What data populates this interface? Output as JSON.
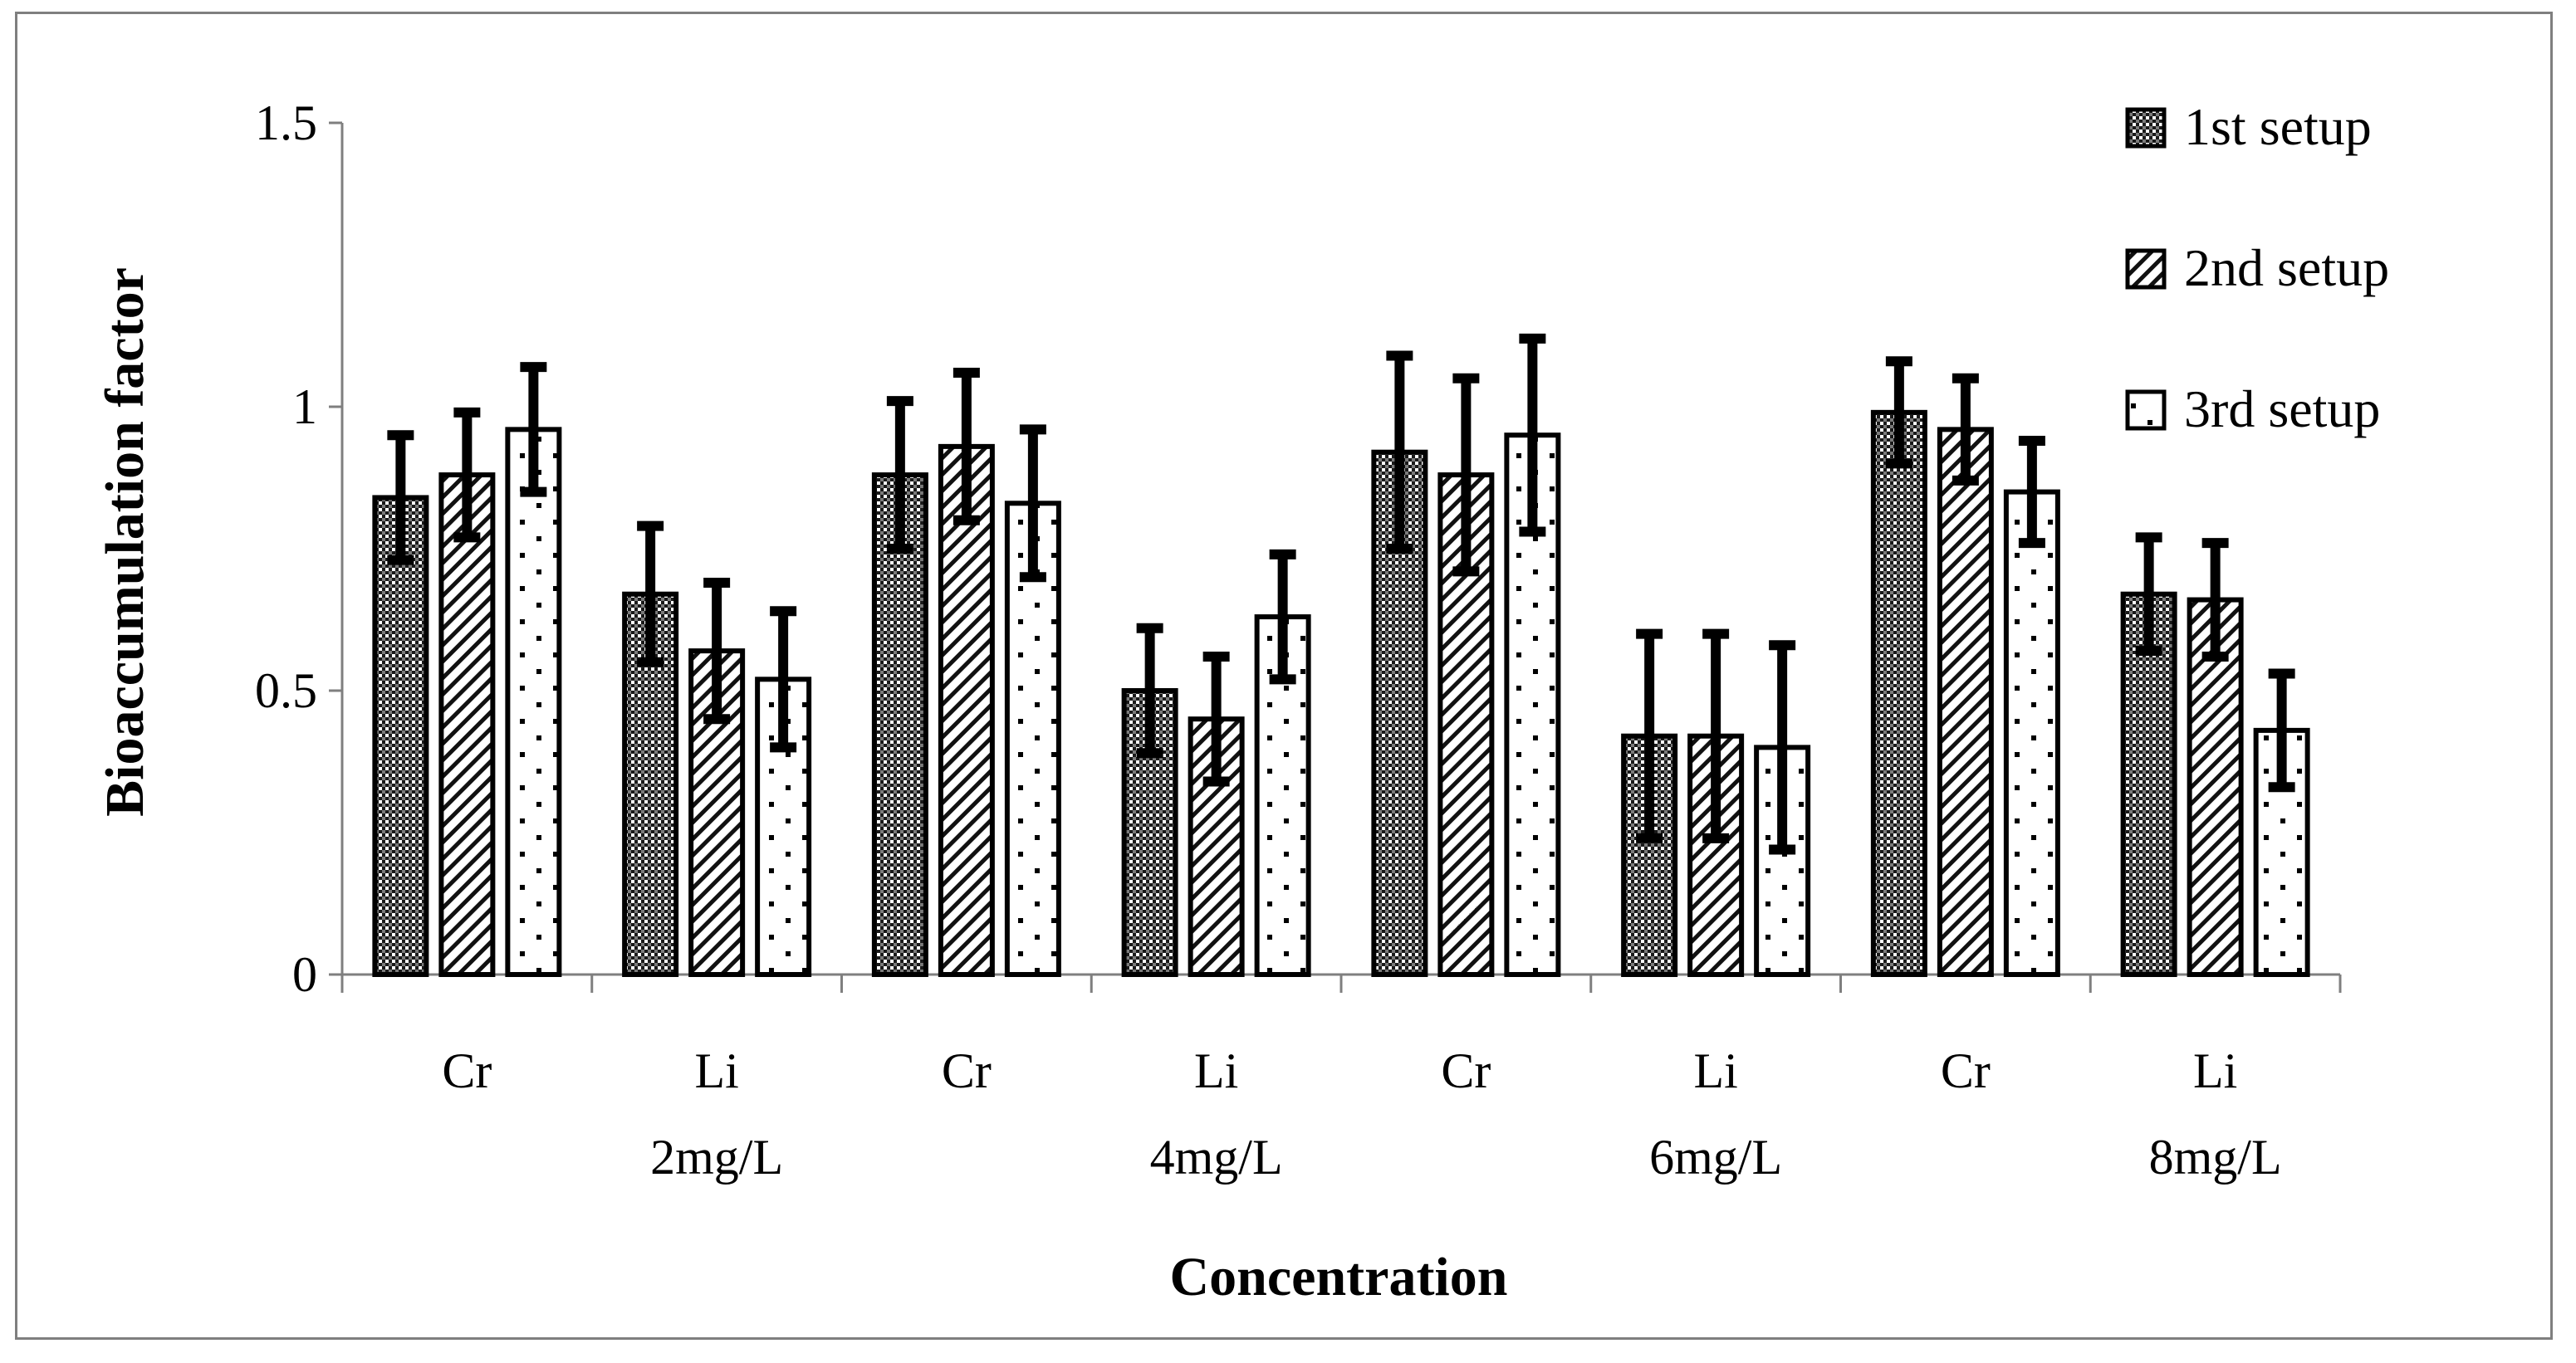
{
  "chart_data": {
    "type": "bar",
    "title": "",
    "xlabel": "Concentration",
    "ylabel": "Bioaccumulation factor",
    "ylim": [
      0,
      1.5
    ],
    "yticks": [
      0,
      0.5,
      1,
      1.5
    ],
    "ytick_labels": [
      "0",
      "0.5",
      "1",
      "1.5"
    ],
    "categories": [
      {
        "line1": "Cr",
        "line2": ""
      },
      {
        "line1": "Li",
        "line2": "2mg/L"
      },
      {
        "line1": "Cr",
        "line2": ""
      },
      {
        "line1": "Li",
        "line2": "4mg/L"
      },
      {
        "line1": "Cr",
        "line2": ""
      },
      {
        "line1": "Li",
        "line2": "6mg/L"
      },
      {
        "line1": "Cr",
        "line2": ""
      },
      {
        "line1": "Li",
        "line2": "8mg/L"
      }
    ],
    "series": [
      {
        "name": "1st setup",
        "pattern": "checker",
        "values": [
          0.84,
          0.67,
          0.88,
          0.5,
          0.92,
          0.42,
          0.99,
          0.67
        ],
        "errors": [
          0.11,
          0.12,
          0.13,
          0.11,
          0.17,
          0.18,
          0.09,
          0.1
        ]
      },
      {
        "name": "2nd setup",
        "pattern": "diagonal",
        "values": [
          0.88,
          0.57,
          0.93,
          0.45,
          0.88,
          0.42,
          0.96,
          0.66
        ],
        "errors": [
          0.11,
          0.12,
          0.13,
          0.11,
          0.17,
          0.18,
          0.09,
          0.1
        ]
      },
      {
        "name": "3rd setup",
        "pattern": "dots",
        "values": [
          0.96,
          0.52,
          0.83,
          0.63,
          0.95,
          0.4,
          0.85,
          0.43
        ],
        "errors": [
          0.11,
          0.12,
          0.13,
          0.11,
          0.17,
          0.18,
          0.09,
          0.1
        ]
      }
    ],
    "legend_position": "top-right",
    "grid": false
  }
}
